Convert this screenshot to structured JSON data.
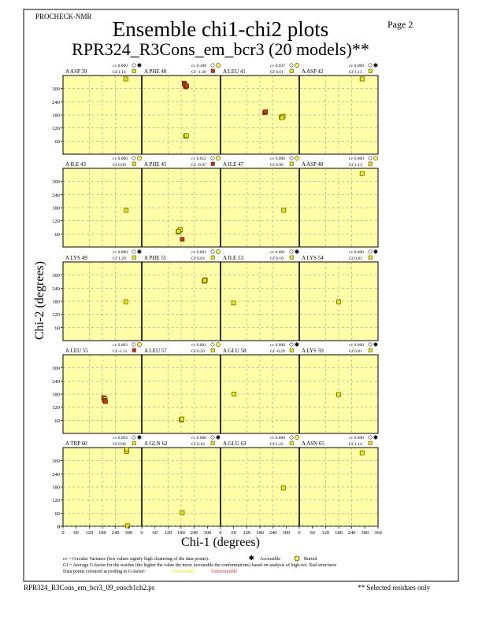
{
  "header": {
    "program": "PROCHECK-NMR",
    "page_label": "Page  2",
    "title": "Ensemble chi1-chi2 plots",
    "subtitle": "RPR324_R3Cons_em_bcr3 (20 models)**"
  },
  "axes": {
    "xlabel": "Chi-1 (degrees)",
    "ylabel": "Chi-2 (degrees)",
    "xticks": [
      "0",
      "60",
      "120",
      "180",
      "240",
      "300",
      "360"
    ],
    "yticks": [
      "0",
      "60",
      "120",
      "180",
      "240",
      "300"
    ]
  },
  "colors": {
    "panel_background": "#ffffa8",
    "favourable_point": "#e8e800",
    "unfavourable_point": "#d42a1e",
    "divider": "#000000"
  },
  "legend": {
    "line1": "cv = Circular Variance (low values signify high clustering of the data points).",
    "accessible": "Accessible",
    "buried": "Buried",
    "line2": "Gf = Average G-factor for the residue (the higher the value the more favourable the conformations) based on analysis of high-res. Xtal structures",
    "line3": "Data points coloured according to G-factor:",
    "favourable": "Favourable",
    "unfavourable": "Unfavourable"
  },
  "footer": {
    "filename": "RPR324_R3Cons_em_bcr3_09_ensch1ch2.ps",
    "note": "** Selected residues only"
  },
  "chart_data": {
    "type": "scatter",
    "xlim": [
      0,
      360
    ],
    "ylim": [
      0,
      360
    ],
    "rows": [
      [
        {
          "label": "A ASP 39",
          "cv": "cv  0.000",
          "gf": "Gf  1.14",
          "access": "accessible",
          "gfclass": "favourable",
          "points": [
            {
              "x": 287,
              "y": 344,
              "bad": false
            }
          ]
        },
        {
          "label": "A PHE 40",
          "cv": "cv  0.108",
          "gf": "Gf -1.36",
          "access": "buried",
          "gfclass": "unfavourable",
          "points": [
            {
              "x": 194,
              "y": 325,
              "bad": true
            },
            {
              "x": 198,
              "y": 315,
              "bad": true
            },
            {
              "x": 202,
              "y": 308,
              "bad": true
            },
            {
              "x": 196,
              "y": 320,
              "bad": true
            },
            {
              "x": 205,
              "y": 312,
              "bad": true
            },
            {
              "x": 200,
              "y": 82,
              "bad": false
            },
            {
              "x": 204,
              "y": 85,
              "bad": false
            }
          ]
        },
        {
          "label": "A LEU 41",
          "cv": "cv  0.037",
          "gf": "Gf  0.01",
          "access": "buried",
          "gfclass": "favourable",
          "points": [
            {
              "x": 202,
              "y": 190,
              "bad": true
            },
            {
              "x": 206,
              "y": 194,
              "bad": true
            },
            {
              "x": 278,
              "y": 170,
              "bad": false
            },
            {
              "x": 286,
              "y": 174,
              "bad": false
            },
            {
              "x": 282,
              "y": 167,
              "bad": false
            }
          ]
        },
        {
          "label": "A ASP 42",
          "cv": "cv  0.000",
          "gf": "Gf  1.13",
          "access": "accessible",
          "gfclass": "favourable",
          "points": [
            {
              "x": 287,
              "y": 344,
              "bad": false
            }
          ]
        }
      ],
      [
        {
          "label": "A ILE 43",
          "cv": "cv  0.000",
          "gf": "Gf  0.90",
          "access": "buried",
          "gfclass": "favourable",
          "points": [
            {
              "x": 289,
              "y": 168,
              "bad": false
            }
          ]
        },
        {
          "label": "A PHE 45",
          "cv": "cv  0.012",
          "gf": "Gf -0.97",
          "access": "buried",
          "gfclass": "unfavourable",
          "points": [
            {
              "x": 166,
              "y": 68,
              "bad": false
            },
            {
              "x": 172,
              "y": 74,
              "bad": false
            },
            {
              "x": 176,
              "y": 80,
              "bad": false
            },
            {
              "x": 168,
              "y": 72,
              "bad": false
            },
            {
              "x": 185,
              "y": 35,
              "bad": true
            }
          ]
        },
        {
          "label": "A ILE 47",
          "cv": "cv  0.000",
          "gf": "Gf  0.90",
          "access": "buried",
          "gfclass": "favourable",
          "points": [
            {
              "x": 289,
              "y": 168,
              "bad": false
            }
          ]
        },
        {
          "label": "A ASP 48",
          "cv": "cv  0.000",
          "gf": "Gf  1.13",
          "access": "buried",
          "gfclass": "favourable",
          "points": [
            {
              "x": 287,
              "y": 336,
              "bad": false
            }
          ]
        }
      ],
      [
        {
          "label": "A LYS 49",
          "cv": "cv  0.000",
          "gf": "Gf  1.20",
          "access": "accessible",
          "gfclass": "favourable",
          "points": [
            {
              "x": 287,
              "y": 178,
              "bad": false
            }
          ]
        },
        {
          "label": "A PHE 51",
          "cv": "cv  0.001",
          "gf": "Gf  0.83",
          "access": "buried",
          "gfclass": "favourable",
          "points": [
            {
              "x": 285,
              "y": 272,
              "bad": false
            },
            {
              "x": 290,
              "y": 278,
              "bad": false
            },
            {
              "x": 288,
              "y": 275,
              "bad": false
            }
          ]
        },
        {
          "label": "A ILE 53",
          "cv": "cv  0.001",
          "gf": "Gf  0.10",
          "access": "accessible",
          "gfclass": "favourable",
          "points": [
            {
              "x": 60,
              "y": 172,
              "bad": false
            }
          ]
        },
        {
          "label": "A LYS 54",
          "cv": "cv  0.000",
          "gf": "Gf  0.83",
          "access": "accessible",
          "gfclass": "favourable",
          "points": [
            {
              "x": 180,
              "y": 178,
              "bad": false
            }
          ]
        }
      ],
      [
        {
          "label": "A LEU 55",
          "cv": "cv  0.003",
          "gf": "Gf -1.11",
          "access": "buried",
          "gfclass": "unfavourable",
          "points": [
            {
              "x": 186,
              "y": 164,
              "bad": true
            },
            {
              "x": 192,
              "y": 158,
              "bad": false
            },
            {
              "x": 189,
              "y": 152,
              "bad": true
            },
            {
              "x": 194,
              "y": 146,
              "bad": true
            }
          ]
        },
        {
          "label": "A LEU 57",
          "cv": "cv  0.001",
          "gf": "Gf  0.50",
          "access": "buried",
          "gfclass": "favourable",
          "points": [
            {
              "x": 180,
              "y": 62,
              "bad": false
            },
            {
              "x": 184,
              "y": 66,
              "bad": false
            }
          ]
        },
        {
          "label": "A GLU 58",
          "cv": "cv  0.000",
          "gf": "Gf -0.29",
          "access": "accessible",
          "gfclass": "favourable",
          "points": [
            {
              "x": 62,
              "y": 180,
              "bad": false
            }
          ]
        },
        {
          "label": "A LYS 59",
          "cv": "cv  0.000",
          "gf": "Gf  0.81",
          "access": "accessible",
          "gfclass": "favourable",
          "points": [
            {
              "x": 180,
              "y": 178,
              "bad": false
            }
          ]
        }
      ],
      [
        {
          "label": "A TRP 60",
          "cv": "cv  0.002",
          "gf": "Gf  0.96",
          "access": "accessible",
          "gfclass": "favourable",
          "points": [
            {
              "x": 290,
              "y": 342,
              "bad": false
            },
            {
              "x": 292,
              "y": 352,
              "bad": false
            },
            {
              "x": 295,
              "y": 2,
              "bad": false
            }
          ]
        },
        {
          "label": "A GLN 62",
          "cv": "cv  0.000",
          "gf": "Gf  0.16",
          "access": "accessible",
          "gfclass": "favourable",
          "points": [
            {
              "x": 185,
              "y": 62,
              "bad": false
            }
          ]
        },
        {
          "label": "A GLU 63",
          "cv": "cv  0.000",
          "gf": "Gf  1.22",
          "access": "buried",
          "gfclass": "favourable",
          "points": [
            {
              "x": 287,
              "y": 175,
              "bad": false
            }
          ]
        },
        {
          "label": "A ASN 65",
          "cv": "cv  0.000",
          "gf": "Gf  1.14",
          "access": "accessible",
          "gfclass": "favourable",
          "points": [
            {
              "x": 287,
              "y": 336,
              "bad": false
            }
          ]
        }
      ]
    ]
  }
}
